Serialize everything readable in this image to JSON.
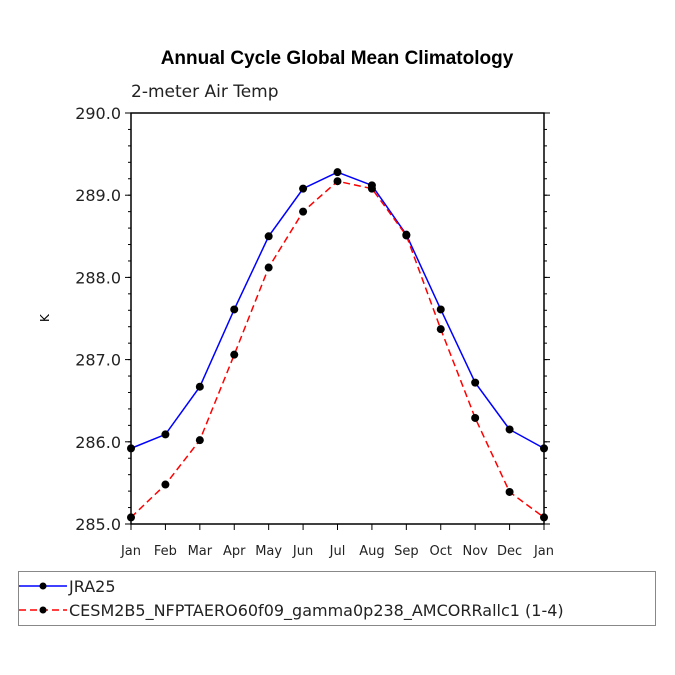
{
  "chart_data": {
    "type": "line",
    "title": "Annual Cycle Global Mean Climatology",
    "subtitle": "2-meter Air Temp",
    "xlabel": "",
    "ylabel": "K",
    "ylim": [
      285.0,
      290.0
    ],
    "yticks": [
      "285.0",
      "286.0",
      "287.0",
      "288.0",
      "289.0",
      "290.0"
    ],
    "categories": [
      "Jan",
      "Feb",
      "Mar",
      "Apr",
      "May",
      "Jun",
      "Jul",
      "Aug",
      "Sep",
      "Oct",
      "Nov",
      "Dec",
      "Jan"
    ],
    "series": [
      {
        "name": "JRA25",
        "color": "#0000ff",
        "dash": "solid",
        "values": [
          285.92,
          286.09,
          286.67,
          287.61,
          288.5,
          289.08,
          289.28,
          289.12,
          288.52,
          287.61,
          286.72,
          286.15,
          285.92
        ]
      },
      {
        "name": "CESM2B5_NFPTAERO60f09_gamma0p238_AMCORRallc1 (1-4)",
        "color": "#ff0000",
        "dash": "dashed",
        "values": [
          285.08,
          285.48,
          286.02,
          287.06,
          288.12,
          288.8,
          289.17,
          289.08,
          288.51,
          287.37,
          286.29,
          285.39,
          285.08
        ]
      }
    ],
    "legend": "bottom",
    "grid": false
  }
}
